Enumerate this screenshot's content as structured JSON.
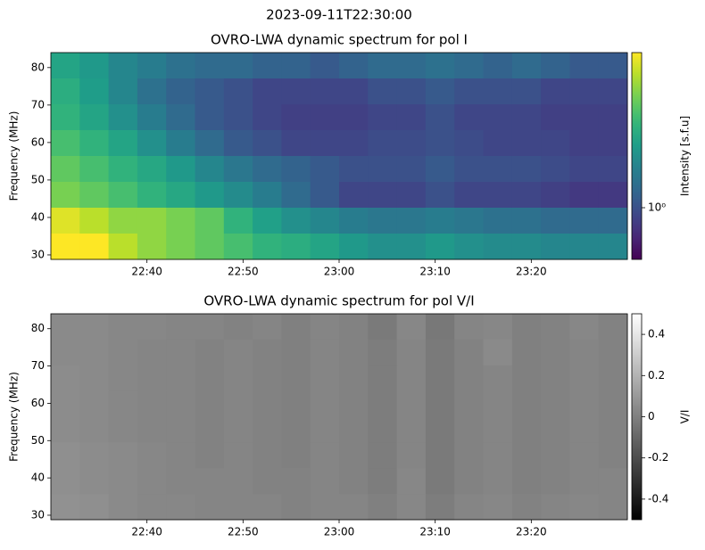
{
  "title": "2023-09-11T22:30:00",
  "chart_data": [
    {
      "type": "heatmap",
      "title": "OVRO-LWA dynamic spectrum for pol I",
      "ylabel": "Frequency (MHz)",
      "xlim": [
        "22:30",
        "23:30"
      ],
      "xticks": [
        "22:40",
        "22:50",
        "23:00",
        "23:10",
        "23:20"
      ],
      "ylim": [
        28.8,
        84
      ],
      "yticks": [
        30,
        40,
        50,
        60,
        70,
        80
      ],
      "colormap": "viridis",
      "colorbar": {
        "label": "Intensity [s.f.u]",
        "scale": "log",
        "lim": [
          0.5,
          8
        ],
        "ticks": [
          {
            "value": 1,
            "label": "10⁰"
          }
        ]
      },
      "z": [
        [
          2.5,
          2.2,
          1.8,
          1.6,
          1.4,
          1.3,
          1.3,
          1.2,
          1.2,
          1.1,
          1.2,
          1.3,
          1.3,
          1.4,
          1.3,
          1.2,
          1.3,
          1.2,
          1.1,
          1.1
        ],
        [
          2.8,
          2.3,
          1.8,
          1.4,
          1.2,
          1.1,
          1.0,
          0.9,
          0.9,
          0.9,
          0.9,
          1.0,
          1.0,
          1.1,
          1.0,
          1.0,
          1.0,
          0.9,
          0.9,
          0.9
        ],
        [
          3,
          2.5,
          2,
          1.6,
          1.3,
          1.1,
          1.0,
          0.9,
          0.85,
          0.85,
          0.85,
          0.9,
          0.9,
          1.0,
          0.9,
          0.9,
          0.9,
          0.85,
          0.85,
          0.85
        ],
        [
          3.5,
          3,
          2.5,
          2,
          1.6,
          1.3,
          1.1,
          1.0,
          0.9,
          0.9,
          0.9,
          0.95,
          0.95,
          1.0,
          0.95,
          0.9,
          0.9,
          0.9,
          0.85,
          0.85
        ],
        [
          4,
          3.5,
          3,
          2.6,
          2.2,
          1.8,
          1.5,
          1.3,
          1.2,
          1.1,
          1.0,
          1.0,
          1.0,
          1.1,
          1.0,
          1.0,
          1.0,
          0.95,
          0.9,
          0.9
        ],
        [
          4.5,
          4,
          3.5,
          3,
          2.6,
          2.2,
          1.9,
          1.6,
          1.3,
          1.1,
          0.9,
          0.9,
          0.9,
          1.0,
          0.9,
          0.9,
          0.9,
          0.85,
          0.8,
          0.8
        ],
        [
          7,
          6,
          5,
          5,
          4.5,
          4,
          3,
          2.4,
          2,
          1.8,
          1.6,
          1.5,
          1.5,
          1.6,
          1.5,
          1.4,
          1.4,
          1.3,
          1.3,
          1.3
        ],
        [
          8,
          8,
          6,
          5,
          4.5,
          4,
          3.5,
          3,
          2.8,
          2.5,
          2.2,
          2,
          2,
          2.2,
          2,
          1.9,
          1.9,
          1.8,
          1.8,
          1.8
        ]
      ]
    },
    {
      "type": "heatmap",
      "title": "OVRO-LWA dynamic spectrum for pol V/I",
      "ylabel": "Frequency (MHz)",
      "xlim": [
        "22:30",
        "23:30"
      ],
      "xticks": [
        "22:40",
        "22:50",
        "23:00",
        "23:10",
        "23:20"
      ],
      "ylim": [
        28.8,
        84
      ],
      "yticks": [
        30,
        40,
        50,
        60,
        70,
        80
      ],
      "colormap": "gray",
      "colorbar": {
        "label": "V/I",
        "scale": "linear",
        "lim": [
          -0.5,
          0.5
        ],
        "ticks": [
          0.4,
          0.2,
          0.0,
          -0.2,
          -0.4
        ]
      },
      "z": [
        [
          0.04,
          0.04,
          0.03,
          0.03,
          0.02,
          0.02,
          0.01,
          0.02,
          0.0,
          0.02,
          0.01,
          -0.02,
          0.03,
          -0.03,
          0.02,
          0.03,
          0.0,
          0.01,
          0.03,
          0.01
        ],
        [
          0.04,
          0.04,
          0.03,
          0.02,
          0.02,
          0.01,
          0.02,
          0.01,
          0.0,
          0.02,
          0.01,
          -0.01,
          0.02,
          -0.02,
          0.01,
          0.04,
          0.0,
          0.01,
          0.02,
          0.01
        ],
        [
          0.05,
          0.04,
          0.03,
          0.02,
          0.02,
          0.01,
          0.02,
          0.01,
          0.0,
          0.02,
          0.01,
          -0.01,
          0.02,
          -0.02,
          0.01,
          0.02,
          0.0,
          0.01,
          0.02,
          0.01
        ],
        [
          0.05,
          0.04,
          0.03,
          0.02,
          0.02,
          0.01,
          0.02,
          0.01,
          0.0,
          0.02,
          0.01,
          -0.01,
          0.02,
          -0.02,
          0.01,
          0.02,
          0.0,
          0.01,
          0.02,
          0.01
        ],
        [
          0.05,
          0.04,
          0.03,
          0.02,
          0.02,
          0.01,
          0.02,
          0.01,
          0.0,
          0.02,
          0.01,
          -0.01,
          0.02,
          -0.02,
          0.01,
          0.02,
          0.0,
          0.01,
          0.02,
          0.01
        ],
        [
          0.06,
          0.05,
          0.04,
          0.03,
          0.02,
          0.01,
          0.02,
          0.01,
          0.0,
          0.02,
          0.01,
          -0.01,
          0.02,
          -0.02,
          0.01,
          0.02,
          0.0,
          0.01,
          0.02,
          0.01
        ],
        [
          0.06,
          0.05,
          0.04,
          0.03,
          0.02,
          0.02,
          0.02,
          0.01,
          0.01,
          0.02,
          0.01,
          -0.01,
          0.03,
          -0.02,
          0.01,
          0.02,
          0.0,
          0.01,
          0.02,
          0.02
        ],
        [
          0.07,
          0.06,
          0.04,
          0.03,
          0.03,
          0.02,
          0.02,
          0.02,
          0.01,
          0.02,
          0.02,
          0.0,
          0.03,
          -0.01,
          0.02,
          0.03,
          0.01,
          0.02,
          0.03,
          0.02
        ]
      ]
    }
  ]
}
